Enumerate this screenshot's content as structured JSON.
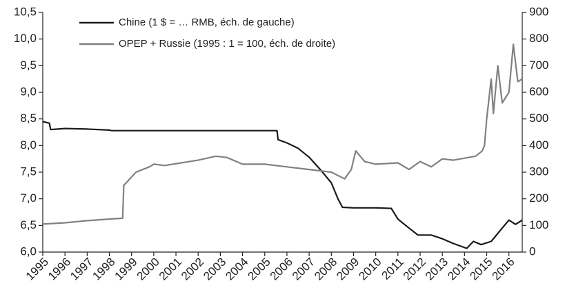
{
  "chart_data": {
    "type": "line",
    "xlim": [
      1995,
      2016.6
    ],
    "xticks": [
      1995,
      1996,
      1997,
      1998,
      1999,
      2000,
      2001,
      2002,
      2003,
      2004,
      2005,
      2006,
      2007,
      2008,
      2009,
      2010,
      2011,
      2012,
      2013,
      2014,
      2015,
      2016
    ],
    "ylim": [
      6.0,
      10.5
    ],
    "yticks": [
      {
        "value": 6.0,
        "label": "6,0"
      },
      {
        "value": 6.5,
        "label": "6,5"
      },
      {
        "value": 7.0,
        "label": "7,0"
      },
      {
        "value": 7.5,
        "label": "7,5"
      },
      {
        "value": 8.0,
        "label": "8,0"
      },
      {
        "value": 8.5,
        "label": "8,5"
      },
      {
        "value": 9.0,
        "label": "9,0"
      },
      {
        "value": 9.5,
        "label": "9,5"
      },
      {
        "value": 10.0,
        "label": "10,0"
      },
      {
        "value": 10.5,
        "label": "10,5"
      }
    ],
    "y2lim": [
      0,
      900
    ],
    "y2ticks": [
      0,
      100,
      200,
      300,
      400,
      500,
      600,
      700,
      800,
      900
    ],
    "legend": "upper left",
    "series": [
      {
        "name": "Chine (1 $ = … RMB, éch. de gauche)",
        "color": "#1a1a1a",
        "x": [
          1995,
          1995.3,
          1995.35,
          1996,
          1997,
          1998,
          1998.1,
          2002,
          2004,
          2005.55,
          2005.6,
          2006,
          2006.5,
          2007,
          2007.5,
          2008,
          2008.3,
          2008.5,
          2009,
          2010,
          2010.7,
          2011,
          2011.5,
          2011.9,
          2012.5,
          2013,
          2013.5,
          2014.1,
          2014.4,
          2014.75,
          2015.2,
          2015.5,
          2015.7,
          2016,
          2016.3,
          2016.6
        ],
        "values": [
          8.45,
          8.42,
          8.3,
          8.32,
          8.31,
          8.29,
          8.28,
          8.28,
          8.28,
          8.28,
          8.11,
          8.05,
          7.95,
          7.78,
          7.55,
          7.3,
          7.0,
          6.84,
          6.83,
          6.83,
          6.82,
          6.62,
          6.45,
          6.32,
          6.32,
          6.25,
          6.16,
          6.07,
          6.2,
          6.14,
          6.2,
          6.35,
          6.45,
          6.6,
          6.52,
          6.6
        ]
      },
      {
        "name": "OPEP + Russie (1995 : 1 = 100, éch. de droite)",
        "color": "#808080",
        "axis": "y2",
        "x": [
          1995,
          1996,
          1997,
          1998,
          1998.6,
          1998.65,
          1999.2,
          1999.8,
          2000,
          2000.5,
          2002,
          2002.8,
          2003.3,
          2004,
          2005,
          2006,
          2007,
          2008,
          2008.6,
          2008.9,
          2009.1,
          2009.5,
          2010,
          2011,
          2011.5,
          2012,
          2012.5,
          2013,
          2013.5,
          2014.5,
          2014.8,
          2014.9,
          2015.0,
          2015.2,
          2015.3,
          2015.5,
          2015.7,
          2016.0,
          2016.2,
          2016.4,
          2016.6
        ],
        "values": [
          105,
          110,
          118,
          124,
          127,
          250,
          300,
          320,
          330,
          325,
          345,
          360,
          355,
          330,
          330,
          320,
          310,
          300,
          275,
          310,
          380,
          340,
          330,
          335,
          310,
          340,
          320,
          350,
          345,
          360,
          380,
          400,
          500,
          650,
          520,
          700,
          560,
          600,
          780,
          640,
          650
        ]
      }
    ]
  }
}
